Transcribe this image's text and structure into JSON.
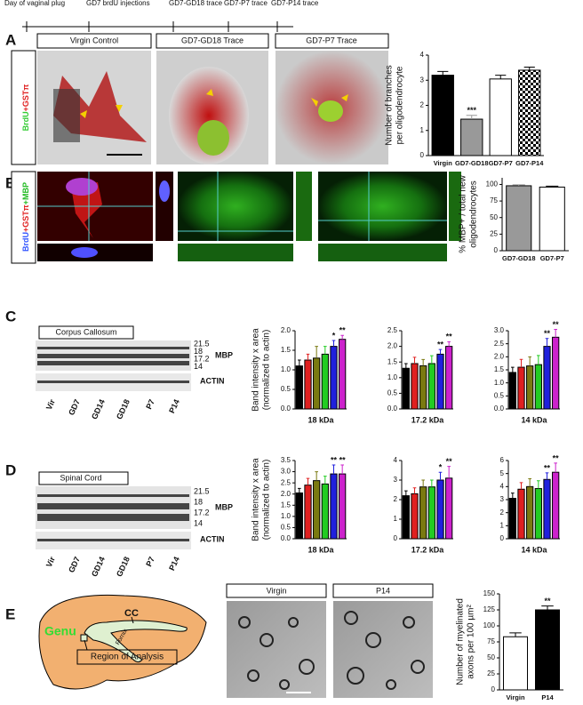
{
  "timeline": [
    "Day of vaginal plug",
    "GD7 brdU injections",
    "GD7-GD18 trace",
    "GD7-P7 trace",
    "GD7-P14 trace"
  ],
  "panels": [
    "A",
    "B",
    "C",
    "D",
    "E"
  ],
  "panel_a": {
    "stain": [
      {
        "text": "BrdU",
        "color": "#33cc33"
      },
      {
        "text": "+GSTπ",
        "color": "#e02020"
      }
    ],
    "images": [
      "Virgin Control",
      "GD7-GD18 Trace",
      "GD7-P7 Trace"
    ]
  },
  "panel_b": {
    "stain": [
      {
        "text": "BrdU",
        "color": "#3355ff"
      },
      {
        "text": "+GSTπ",
        "color": "#e02020"
      },
      {
        "text": "+MBP",
        "color": "#22bb22"
      }
    ]
  },
  "blot_c": {
    "title": "Corpus Callosum",
    "markers": [
      "21.5",
      "18",
      "17.2",
      "14"
    ],
    "mbp": "MBP",
    "actin": "ACTIN",
    "lanes": [
      {
        "text": "Vir",
        "color": "#000000"
      },
      {
        "text": "GD7",
        "color": "#e02020"
      },
      {
        "text": "GD14",
        "color": "#7a7a10"
      },
      {
        "text": "GD18",
        "color": "#22cc22"
      },
      {
        "text": "P7",
        "color": "#2020dd"
      },
      {
        "text": "P14",
        "color": "#cc22cc"
      }
    ]
  },
  "blot_d": {
    "title": "Spinal Cord",
    "markers": [
      "21.5",
      "18",
      "17.2",
      "14"
    ],
    "mbp": "MBP",
    "actin": "ACTIN",
    "lanes": [
      {
        "text": "Vir",
        "color": "#000000"
      },
      {
        "text": "GD7",
        "color": "#e02020"
      },
      {
        "text": "GD14",
        "color": "#7a7a10"
      },
      {
        "text": "GD18",
        "color": "#22cc22"
      },
      {
        "text": "P7",
        "color": "#2020dd"
      },
      {
        "text": "P14",
        "color": "#cc22cc"
      }
    ]
  },
  "panel_e": {
    "genu": "Genu",
    "cc": "CC",
    "fornix": "Fornix",
    "region": "Region of Analysis",
    "images": [
      "Virgin",
      "P14"
    ]
  },
  "chart_data": [
    {
      "type": "bar",
      "ylabel": [
        "Number of branches",
        "per oligodendrocyte"
      ],
      "categories": [
        "Virgin",
        "GD7-GD18",
        "GD7-P7",
        "GD7-P14"
      ],
      "values": [
        3.2,
        1.45,
        3.05,
        3.4
      ],
      "errors": [
        0.15,
        0.15,
        0.15,
        0.12
      ],
      "colors": [
        "#000000",
        "#999999",
        "#ffffff",
        "url(#checker)"
      ],
      "annotations": [
        null,
        "***",
        null,
        null
      ],
      "ylim": [
        0,
        4
      ],
      "yticks": [
        0,
        1,
        2,
        3,
        4
      ]
    },
    {
      "type": "bar",
      "ylabel": [
        "% MBP+ / total new",
        "oligodendrocytes"
      ],
      "categories": [
        "GD7-GD18",
        "GD7-P7"
      ],
      "values": [
        98,
        96
      ],
      "errors": [
        1.5,
        1.5
      ],
      "colors": [
        "#999999",
        "#ffffff"
      ],
      "annotations": [
        null,
        null
      ],
      "ylim": [
        0,
        110
      ],
      "yticks": [
        0,
        25,
        50,
        75,
        100
      ]
    },
    {
      "type": "bar",
      "ylabel": [
        "Band intensity x area",
        "(normalized to actin)"
      ],
      "xlabel": "18 kDa",
      "values": [
        1.1,
        1.25,
        1.3,
        1.4,
        1.6,
        1.78
      ],
      "errors": [
        0.15,
        0.15,
        0.3,
        0.2,
        0.15,
        0.1
      ],
      "colors": [
        "#000000",
        "#e02020",
        "#7a7a10",
        "#22cc22",
        "#2020dd",
        "#cc22cc"
      ],
      "annotations": [
        null,
        null,
        null,
        null,
        "*",
        "**"
      ],
      "ylim": [
        0,
        2
      ],
      "yticks": [
        {
          "value": 0,
          "label": "0.0"
        },
        0.5,
        {
          "value": 1,
          "label": "1.0"
        },
        1.5,
        {
          "value": 2,
          "label": "2.0"
        }
      ]
    },
    {
      "type": "bar",
      "xlabel": "17.2 kDa",
      "values": [
        1.3,
        1.45,
        1.38,
        1.45,
        1.75,
        2.0
      ],
      "errors": [
        0.15,
        0.2,
        0.2,
        0.25,
        0.15,
        0.15
      ],
      "colors": [
        "#000000",
        "#e02020",
        "#7a7a10",
        "#22cc22",
        "#2020dd",
        "#cc22cc"
      ],
      "annotations": [
        null,
        null,
        null,
        null,
        "**",
        "**"
      ],
      "ylim": [
        0,
        2.5
      ],
      "yticks": [
        {
          "value": 0,
          "label": "0.0"
        },
        0.5,
        {
          "value": 1,
          "label": "1.0"
        },
        1.5,
        {
          "value": 2,
          "label": "2.0"
        },
        2.5
      ]
    },
    {
      "type": "bar",
      "xlabel": "14 kDa",
      "values": [
        1.4,
        1.6,
        1.65,
        1.7,
        2.4,
        2.75
      ],
      "errors": [
        0.2,
        0.3,
        0.35,
        0.35,
        0.3,
        0.3
      ],
      "colors": [
        "#000000",
        "#e02020",
        "#7a7a10",
        "#22cc22",
        "#2020dd",
        "#cc22cc"
      ],
      "annotations": [
        null,
        null,
        null,
        null,
        "**",
        "**"
      ],
      "ylim": [
        0,
        3
      ],
      "yticks": [
        {
          "value": 0,
          "label": "0.0"
        },
        0.5,
        {
          "value": 1,
          "label": "1.0"
        },
        1.5,
        {
          "value": 2,
          "label": "2.0"
        },
        2.5,
        {
          "value": 3,
          "label": "3.0"
        }
      ]
    },
    {
      "type": "bar",
      "ylabel": [
        "Band intensity x area",
        "(normalized to actin)"
      ],
      "xlabel": "18 kDa",
      "values": [
        2.05,
        2.4,
        2.6,
        2.45,
        2.9,
        2.9
      ],
      "errors": [
        0.2,
        0.3,
        0.4,
        0.35,
        0.4,
        0.4
      ],
      "colors": [
        "#000000",
        "#e02020",
        "#7a7a10",
        "#22cc22",
        "#2020dd",
        "#cc22cc"
      ],
      "annotations": [
        null,
        null,
        null,
        null,
        "**",
        "**"
      ],
      "ylim": [
        0,
        3.5
      ],
      "yticks": [
        {
          "value": 0,
          "label": "0.0"
        },
        0.5,
        {
          "value": 1,
          "label": "1.0"
        },
        1.5,
        {
          "value": 2,
          "label": "2.0"
        },
        2.5,
        {
          "value": 3,
          "label": "3.0"
        },
        3.5
      ]
    },
    {
      "type": "bar",
      "xlabel": "17.2 kDa",
      "values": [
        2.2,
        2.3,
        2.65,
        2.65,
        3.0,
        3.1
      ],
      "errors": [
        0.25,
        0.3,
        0.35,
        0.35,
        0.4,
        0.6
      ],
      "colors": [
        "#000000",
        "#e02020",
        "#7a7a10",
        "#22cc22",
        "#2020dd",
        "#cc22cc"
      ],
      "annotations": [
        null,
        null,
        null,
        null,
        "*",
        "**"
      ],
      "ylim": [
        0,
        4
      ],
      "yticks": [
        0,
        1,
        2,
        3,
        4
      ]
    },
    {
      "type": "bar",
      "xlabel": "14 kDa",
      "values": [
        3.1,
        3.8,
        4.0,
        3.85,
        4.55,
        5.1
      ],
      "errors": [
        0.4,
        0.5,
        0.6,
        0.6,
        0.5,
        0.7
      ],
      "colors": [
        "#000000",
        "#e02020",
        "#7a7a10",
        "#22cc22",
        "#2020dd",
        "#cc22cc"
      ],
      "annotations": [
        null,
        null,
        null,
        null,
        "**",
        "**"
      ],
      "ylim": [
        0,
        6
      ],
      "yticks": [
        0,
        1,
        2,
        3,
        4,
        5,
        6
      ]
    },
    {
      "type": "bar",
      "ylabel": [
        "Number of myelinated",
        "axons per 100 µm²"
      ],
      "categories": [
        "Virgin",
        "P14"
      ],
      "values": [
        83,
        125
      ],
      "errors": [
        6,
        6
      ],
      "colors": [
        "#ffffff",
        "#000000"
      ],
      "annotations": [
        null,
        "**"
      ],
      "ylim": [
        0,
        150
      ],
      "yticks": [
        0,
        25,
        50,
        75,
        100,
        125,
        150
      ]
    }
  ]
}
